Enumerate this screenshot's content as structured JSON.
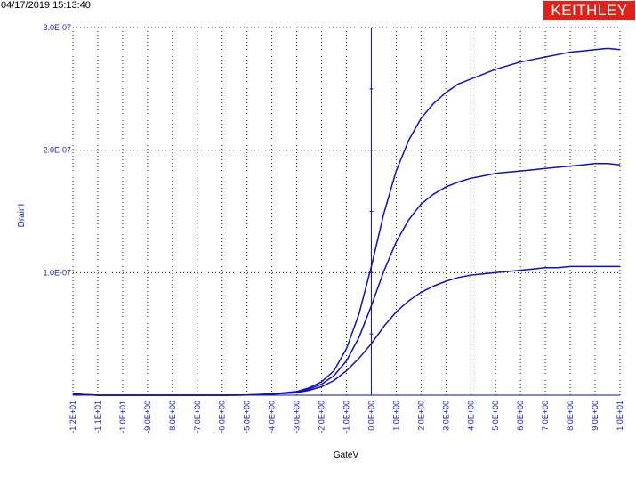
{
  "header": {
    "timestamp": "04/17/2019 15:13:40",
    "brand": "KEITHLEY"
  },
  "colors": {
    "series": "#1010c0",
    "brand_bg": "#e0201b",
    "grid": "#222222"
  },
  "chart_data": {
    "type": "line",
    "title": "",
    "xlabel": "GateV",
    "ylabel": "DrainI",
    "xlim": [
      -12,
      10
    ],
    "ylim": [
      0,
      3e-07
    ],
    "grid": true,
    "x_ticks": [
      -12,
      -11,
      -10,
      -9,
      -8,
      -7,
      -6,
      -5,
      -4,
      -3,
      -2,
      -1,
      0,
      1,
      2,
      3,
      4,
      5,
      6,
      7,
      8,
      9,
      10
    ],
    "x_tick_labels": [
      "-1.2E+01",
      "-1.1E+01",
      "-1.0E+01",
      "-9.0E+00",
      "-8.0E+00",
      "-7.0E+00",
      "-6.0E+00",
      "-5.0E+00",
      "-4.0E+00",
      "-3.0E+00",
      "-2.0E+00",
      "-1.0E+00",
      "0.0E+00",
      "1.0E+00",
      "2.0E+00",
      "3.0E+00",
      "4.0E+00",
      "5.0E+00",
      "6.0E+00",
      "7.0E+00",
      "8.0E+00",
      "9.0E+00",
      "1.0E+01"
    ],
    "y_ticks": [
      1e-07,
      2e-07,
      3e-07
    ],
    "y_tick_labels": [
      "1.0E-07",
      "2.0E-07",
      "3.0E-07"
    ],
    "x": [
      -12,
      -11,
      -10,
      -9,
      -8,
      -7,
      -6,
      -5,
      -4,
      -3,
      -2.5,
      -2,
      -1.5,
      -1,
      -0.5,
      0,
      0.5,
      1,
      1.5,
      2,
      2.5,
      3,
      3.5,
      4,
      4.5,
      5,
      5.5,
      6,
      6.5,
      7,
      7.5,
      8,
      8.5,
      9,
      9.5,
      10
    ],
    "series": [
      {
        "values": [
          1e-09,
          0,
          0,
          0,
          0,
          0,
          0,
          2e-10,
          1e-09,
          3e-09,
          6e-09,
          1.1e-08,
          2e-08,
          3.8e-08,
          6.6e-08,
          1.05e-07,
          1.48e-07,
          1.83e-07,
          2.08e-07,
          2.26e-07,
          2.38e-07,
          2.47e-07,
          2.54e-07,
          2.58e-07,
          2.62e-07,
          2.66e-07,
          2.69e-07,
          2.72e-07,
          2.74e-07,
          2.76e-07,
          2.78e-07,
          2.8e-07,
          2.81e-07,
          2.82e-07,
          2.83e-07,
          2.82e-07
        ]
      },
      {
        "values": [
          1e-09,
          0,
          0,
          0,
          0,
          0,
          0,
          2e-10,
          1e-09,
          2.5e-09,
          5e-09,
          9e-09,
          1.6e-08,
          2.8e-08,
          4.7e-08,
          7.3e-08,
          1.01e-07,
          1.25e-07,
          1.43e-07,
          1.56e-07,
          1.64e-07,
          1.7e-07,
          1.74e-07,
          1.77e-07,
          1.79e-07,
          1.81e-07,
          1.82e-07,
          1.83e-07,
          1.84e-07,
          1.85e-07,
          1.86e-07,
          1.87e-07,
          1.88e-07,
          1.89e-07,
          1.89e-07,
          1.88e-07
        ]
      },
      {
        "values": [
          1e-09,
          0,
          0,
          0,
          0,
          0,
          0,
          2e-10,
          8e-10,
          2e-09,
          4e-09,
          7e-09,
          1.2e-08,
          2e-08,
          3e-08,
          4.2e-08,
          5.6e-08,
          6.8e-08,
          7.7e-08,
          8.4e-08,
          8.9e-08,
          9.3e-08,
          9.6e-08,
          9.8e-08,
          9.9e-08,
          1e-07,
          1.01e-07,
          1.02e-07,
          1.03e-07,
          1.04e-07,
          1.04e-07,
          1.05e-07,
          1.05e-07,
          1.05e-07,
          1.05e-07,
          1.05e-07
        ]
      }
    ]
  }
}
